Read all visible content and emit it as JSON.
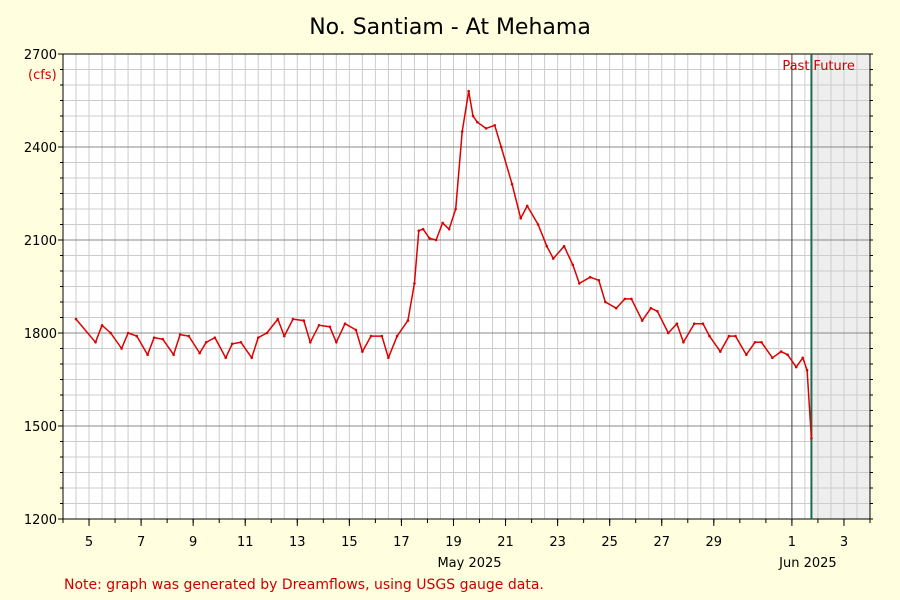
{
  "chart_data": {
    "type": "line",
    "title": "No. Santiam - At Mehama",
    "ylabel": "(cfs)",
    "ylim": [
      1200,
      2700
    ],
    "yticks": [
      1200,
      1500,
      1800,
      2100,
      2400,
      2700
    ],
    "ytick_labels": [
      "1200",
      "1500",
      "1800",
      "2100",
      "2400",
      "2700"
    ],
    "xlim": [
      "2025-05-04",
      "2025-06-04"
    ],
    "xticks": [
      {
        "date": "2025-05-05",
        "label": "5"
      },
      {
        "date": "2025-05-07",
        "label": "7"
      },
      {
        "date": "2025-05-09",
        "label": "9"
      },
      {
        "date": "2025-05-11",
        "label": "11"
      },
      {
        "date": "2025-05-13",
        "label": "13"
      },
      {
        "date": "2025-05-15",
        "label": "15"
      },
      {
        "date": "2025-05-17",
        "label": "17"
      },
      {
        "date": "2025-05-19",
        "label": "19"
      },
      {
        "date": "2025-05-21",
        "label": "21"
      },
      {
        "date": "2025-05-23",
        "label": "23"
      },
      {
        "date": "2025-05-25",
        "label": "25"
      },
      {
        "date": "2025-05-27",
        "label": "27"
      },
      {
        "date": "2025-05-29",
        "label": "29"
      },
      {
        "date": "2025-06-01",
        "label": "1"
      },
      {
        "date": "2025-06-03",
        "label": "3"
      }
    ],
    "month_labels": [
      {
        "date": "2025-05-20",
        "label": "May 2025"
      },
      {
        "date": "2025-06-02",
        "label": "Jun 2025"
      }
    ],
    "now": "2025-06-01 18:00",
    "past_label": "Past",
    "future_label": "Future",
    "grid": true,
    "series": [
      {
        "color": "#dd0000",
        "x": [
          "2025-05-04 12:00",
          "2025-05-05 06:00",
          "2025-05-05 12:00",
          "2025-05-05 20:00",
          "2025-05-06 06:00",
          "2025-05-06 12:00",
          "2025-05-06 20:00",
          "2025-05-07 06:00",
          "2025-05-07 12:00",
          "2025-05-07 20:00",
          "2025-05-08 06:00",
          "2025-05-08 12:00",
          "2025-05-08 20:00",
          "2025-05-09 06:00",
          "2025-05-09 12:00",
          "2025-05-09 20:00",
          "2025-05-10 06:00",
          "2025-05-10 12:00",
          "2025-05-10 20:00",
          "2025-05-11 06:00",
          "2025-05-11 12:00",
          "2025-05-11 20:00",
          "2025-05-12 06:00",
          "2025-05-12 12:00",
          "2025-05-12 20:00",
          "2025-05-13 06:00",
          "2025-05-13 12:00",
          "2025-05-13 20:00",
          "2025-05-14 06:00",
          "2025-05-14 12:00",
          "2025-05-14 20:00",
          "2025-05-15 06:00",
          "2025-05-15 12:00",
          "2025-05-15 20:00",
          "2025-05-16 06:00",
          "2025-05-16 12:00",
          "2025-05-16 20:00",
          "2025-05-17 06:00",
          "2025-05-17 12:00",
          "2025-05-17 16:00",
          "2025-05-17 20:00",
          "2025-05-18 02:00",
          "2025-05-18 08:00",
          "2025-05-18 14:00",
          "2025-05-18 20:00",
          "2025-05-19 02:00",
          "2025-05-19 08:00",
          "2025-05-19 14:00",
          "2025-05-19 18:00",
          "2025-05-19 22:00",
          "2025-05-20 06:00",
          "2025-05-20 14:00",
          "2025-05-20 20:00",
          "2025-05-21 06:00",
          "2025-05-21 14:00",
          "2025-05-21 20:00",
          "2025-05-22 06:00",
          "2025-05-22 14:00",
          "2025-05-22 20:00",
          "2025-05-23 06:00",
          "2025-05-23 14:00",
          "2025-05-23 20:00",
          "2025-05-24 06:00",
          "2025-05-24 14:00",
          "2025-05-24 20:00",
          "2025-05-25 06:00",
          "2025-05-25 14:00",
          "2025-05-25 20:00",
          "2025-05-26 06:00",
          "2025-05-26 14:00",
          "2025-05-26 20:00",
          "2025-05-27 06:00",
          "2025-05-27 14:00",
          "2025-05-27 20:00",
          "2025-05-28 06:00",
          "2025-05-28 14:00",
          "2025-05-28 20:00",
          "2025-05-29 06:00",
          "2025-05-29 14:00",
          "2025-05-29 20:00",
          "2025-05-30 06:00",
          "2025-05-30 14:00",
          "2025-05-30 20:00",
          "2025-05-31 06:00",
          "2025-05-31 14:00",
          "2025-05-31 20:00",
          "2025-06-01 04:00",
          "2025-06-01 10:00",
          "2025-06-01 14:00",
          "2025-06-01 18:00"
        ],
        "y": [
          1845,
          1770,
          1825,
          1800,
          1750,
          1800,
          1790,
          1730,
          1785,
          1780,
          1730,
          1795,
          1790,
          1735,
          1770,
          1785,
          1720,
          1765,
          1770,
          1720,
          1785,
          1800,
          1845,
          1790,
          1845,
          1840,
          1770,
          1825,
          1820,
          1770,
          1830,
          1810,
          1740,
          1790,
          1790,
          1720,
          1790,
          1840,
          1960,
          2130,
          2135,
          2105,
          2100,
          2155,
          2135,
          2200,
          2450,
          2580,
          2500,
          2480,
          2460,
          2470,
          2400,
          2280,
          2170,
          2210,
          2150,
          2080,
          2040,
          2080,
          2020,
          1960,
          1980,
          1970,
          1900,
          1880,
          1910,
          1910,
          1840,
          1880,
          1870,
          1800,
          1830,
          1770,
          1830,
          1830,
          1790,
          1740,
          1790,
          1790,
          1730,
          1770,
          1770,
          1720,
          1740,
          1730,
          1690,
          1720,
          1680,
          1460
        ]
      }
    ]
  },
  "note": "Note: graph was generated by Dreamflows, using USGS gauge data."
}
